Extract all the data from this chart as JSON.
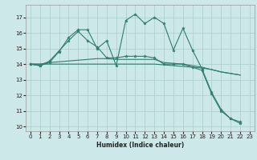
{
  "xlabel": "Humidex (Indice chaleur)",
  "bg_color": "#cce8e8",
  "grid_color": "#aacccc",
  "line_color": "#2e7d6e",
  "xlim": [
    -0.5,
    23.5
  ],
  "ylim": [
    9.7,
    17.8
  ],
  "yticks": [
    10,
    11,
    12,
    13,
    14,
    15,
    16,
    17
  ],
  "xticks": [
    0,
    1,
    2,
    3,
    4,
    5,
    6,
    7,
    8,
    9,
    10,
    11,
    12,
    13,
    14,
    15,
    16,
    17,
    18,
    19,
    20,
    21,
    22,
    23
  ],
  "line1_x": [
    0,
    1,
    2,
    3,
    4,
    5,
    6,
    7,
    8,
    9,
    10,
    11,
    12,
    13,
    14,
    15,
    16,
    17,
    18,
    19,
    20,
    21,
    22
  ],
  "line1_y": [
    14.0,
    13.9,
    14.1,
    14.8,
    15.7,
    16.2,
    16.2,
    15.0,
    15.5,
    13.9,
    16.8,
    17.2,
    16.6,
    17.0,
    16.6,
    14.9,
    16.3,
    14.9,
    13.7,
    12.2,
    11.1,
    10.5,
    10.3
  ],
  "line2_x": [
    0,
    1,
    2,
    3,
    4,
    5,
    6,
    7,
    8,
    9,
    10,
    11,
    12,
    13,
    14,
    15,
    16,
    17,
    18,
    19,
    20,
    21,
    22
  ],
  "line2_y": [
    14.0,
    13.9,
    14.2,
    14.85,
    15.5,
    16.1,
    15.5,
    15.1,
    14.4,
    14.4,
    14.5,
    14.5,
    14.5,
    14.4,
    14.0,
    14.0,
    14.0,
    13.8,
    13.6,
    12.1,
    11.0,
    10.5,
    10.2
  ],
  "line3_x": [
    0,
    1,
    2,
    3,
    4,
    5,
    6,
    7,
    8,
    9,
    10,
    11,
    12,
    13,
    14,
    15,
    16,
    17,
    18,
    19,
    20,
    21,
    22
  ],
  "line3_y": [
    14.0,
    14.0,
    14.1,
    14.15,
    14.2,
    14.25,
    14.3,
    14.35,
    14.35,
    14.3,
    14.3,
    14.3,
    14.3,
    14.3,
    14.1,
    14.05,
    14.0,
    13.9,
    13.8,
    13.65,
    13.5,
    13.4,
    13.3
  ],
  "line4_x": [
    0,
    1,
    2,
    3,
    4,
    5,
    6,
    7,
    8,
    9,
    10,
    11,
    12,
    13,
    14,
    15,
    16,
    17,
    18,
    19,
    20,
    21,
    22
  ],
  "line4_y": [
    14.0,
    14.0,
    14.0,
    14.0,
    14.0,
    14.0,
    14.0,
    14.0,
    14.0,
    14.0,
    14.0,
    14.0,
    14.0,
    14.0,
    13.95,
    13.9,
    13.85,
    13.8,
    13.75,
    13.65,
    13.5,
    13.4,
    13.3
  ]
}
